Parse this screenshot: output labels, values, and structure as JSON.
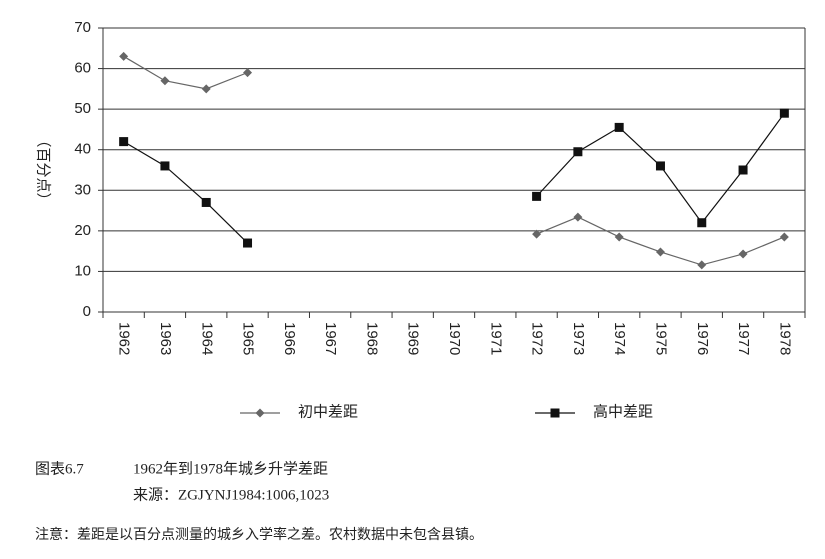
{
  "chart_data": {
    "type": "line",
    "y_label": "（百分点）",
    "figure_label": "图表6.7",
    "title": "1962年到1978年城乡升学差距",
    "source": "来源：ZGJYNJ1984:1006,1023",
    "note": "注意：差距是以百分点测量的城乡入学率之差。农村数据中未包含县镇。",
    "categories": [
      "1962",
      "1963",
      "1964",
      "1965",
      "1966",
      "1967",
      "1968",
      "1969",
      "1970",
      "1971",
      "1972",
      "1973",
      "1974",
      "1975",
      "1976",
      "1977",
      "1978"
    ],
    "series": [
      {
        "name": "初中差距",
        "color": "#666666",
        "marker": "diamond",
        "values": [
          63,
          57,
          55,
          59,
          null,
          null,
          null,
          null,
          null,
          null,
          19.2,
          23.4,
          18.5,
          14.8,
          11.6,
          14.3,
          18.5
        ]
      },
      {
        "name": "高中差距",
        "color": "#111111",
        "marker": "square",
        "values": [
          42,
          36,
          27,
          17,
          null,
          null,
          null,
          null,
          null,
          null,
          28.5,
          39.5,
          45.5,
          36,
          22,
          35,
          49
        ]
      }
    ],
    "ylim": [
      0,
      70
    ],
    "yticks": [
      0,
      10,
      20,
      30,
      40,
      50,
      60,
      70
    ],
    "grid": true,
    "legend": "bottom"
  }
}
